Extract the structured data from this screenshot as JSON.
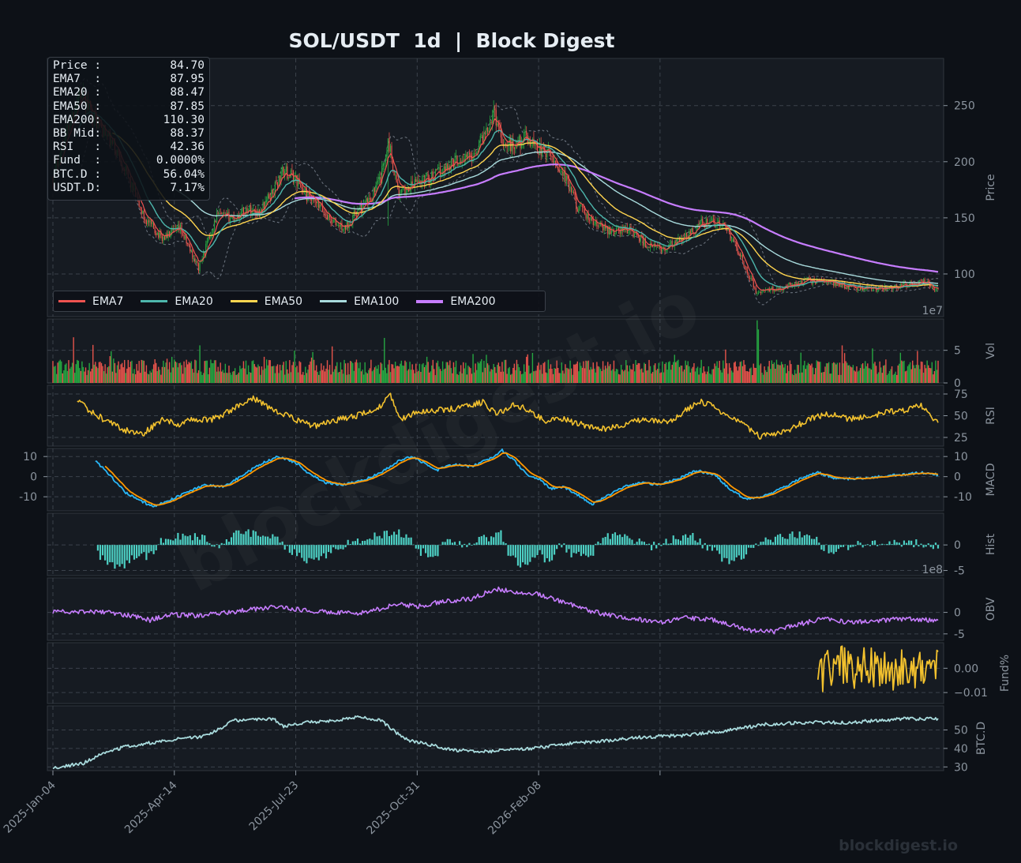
{
  "title": "SOL/USDT  1d  |  Block Digest",
  "watermark": "blockdigest.io",
  "footer_brand": "blockdigest.io",
  "info_box": [
    {
      "label": "Price :",
      "value": "84.70"
    },
    {
      "label": "EMA7  :",
      "value": "87.95"
    },
    {
      "label": "EMA20 :",
      "value": "88.47"
    },
    {
      "label": "EMA50 :",
      "value": "87.85"
    },
    {
      "label": "EMA200:",
      "value": "110.30"
    },
    {
      "label": "BB Mid:",
      "value": "88.37"
    },
    {
      "label": "RSI   :",
      "value": "42.36"
    },
    {
      "label": "Fund  :",
      "value": "0.0000%"
    },
    {
      "label": "BTC.D :",
      "value": "56.04%"
    },
    {
      "label": "USDT.D:",
      "value": "7.17%"
    }
  ],
  "legend": [
    {
      "name": "EMA7",
      "color": "#ef5350"
    },
    {
      "name": "EMA20",
      "color": "#4db6ac"
    },
    {
      "name": "EMA50",
      "color": "#ffd54f"
    },
    {
      "name": "EMA100",
      "color": "#a8dadc"
    },
    {
      "name": "EMA200",
      "color": "#c77dff"
    }
  ],
  "x_ticks": [
    "2025-Jan-04",
    "2025-Apr-14",
    "2025-Jul-23",
    "2025-Oct-31",
    "2026-Feb-08"
  ],
  "colors": {
    "background": "#0d1117",
    "panel": "#161b22",
    "up": "#26a641",
    "down": "#e5534b",
    "rsi": "#f2c12e",
    "macd": "#29b6f6",
    "signal": "#ff9800",
    "hist": "#4dd0c4",
    "obv": "#c77dff",
    "fund": "#f2c12e",
    "btcd": "#a8dadc"
  },
  "chart_data": [
    {
      "type": "candlestick",
      "panel": "price",
      "ylabel": "Price",
      "y_ticks": [
        100,
        150,
        200,
        250
      ],
      "ylim": [
        62,
        292
      ],
      "x_start": "2025-01-04",
      "x_end": "2026-05-09",
      "anchors": [
        [
          0,
          186
        ],
        [
          10,
          222
        ],
        [
          22,
          262
        ],
        [
          35,
          238
        ],
        [
          55,
          205
        ],
        [
          75,
          150
        ],
        [
          90,
          132
        ],
        [
          105,
          140
        ],
        [
          120,
          105
        ],
        [
          135,
          152
        ],
        [
          150,
          150
        ],
        [
          160,
          158
        ],
        [
          170,
          155
        ],
        [
          180,
          172
        ],
        [
          190,
          192
        ],
        [
          200,
          185
        ],
        [
          210,
          168
        ],
        [
          220,
          159
        ],
        [
          230,
          147
        ],
        [
          240,
          140
        ],
        [
          250,
          155
        ],
        [
          260,
          165
        ],
        [
          270,
          185
        ],
        [
          276,
          220
        ],
        [
          285,
          170
        ],
        [
          300,
          182
        ],
        [
          315,
          188
        ],
        [
          330,
          200
        ],
        [
          345,
          205
        ],
        [
          355,
          224
        ],
        [
          363,
          245
        ],
        [
          372,
          215
        ],
        [
          380,
          215
        ],
        [
          390,
          222
        ],
        [
          400,
          212
        ],
        [
          410,
          205
        ],
        [
          420,
          190
        ],
        [
          432,
          160
        ],
        [
          445,
          145
        ],
        [
          460,
          138
        ],
        [
          475,
          140
        ],
        [
          490,
          125
        ],
        [
          505,
          122
        ],
        [
          520,
          132
        ],
        [
          535,
          146
        ],
        [
          550,
          145
        ],
        [
          560,
          130
        ],
        [
          570,
          107
        ],
        [
          580,
          82
        ],
        [
          590,
          86
        ],
        [
          600,
          88
        ],
        [
          620,
          94
        ],
        [
          640,
          93
        ],
        [
          660,
          88
        ],
        [
          680,
          86
        ],
        [
          700,
          90
        ],
        [
          720,
          93
        ],
        [
          729,
          85
        ]
      ],
      "series": [
        {
          "name": "EMA7",
          "color": "#ef5350"
        },
        {
          "name": "EMA20",
          "color": "#4db6ac"
        },
        {
          "name": "EMA50",
          "color": "#ffd54f"
        },
        {
          "name": "EMA100",
          "color": "#a8dadc"
        },
        {
          "name": "EMA200",
          "color": "#c77dff"
        }
      ],
      "bollinger": "BB Mid ± 2σ (dashed)"
    },
    {
      "type": "bar",
      "panel": "volume",
      "ylabel": "Vol",
      "y_ticks": [
        0,
        5
      ],
      "ylim": [
        0,
        9.8
      ],
      "offset_text": "1e7"
    },
    {
      "type": "line",
      "panel": "rsi",
      "ylabel": "RSI",
      "y_ticks": [
        25,
        50,
        75
      ],
      "ylim": [
        15,
        85
      ],
      "anchors": [
        [
          20,
          70
        ],
        [
          30,
          56
        ],
        [
          45,
          43
        ],
        [
          60,
          33
        ],
        [
          75,
          30
        ],
        [
          90,
          45
        ],
        [
          105,
          40
        ],
        [
          115,
          46
        ],
        [
          130,
          45
        ],
        [
          145,
          55
        ],
        [
          155,
          64
        ],
        [
          165,
          70
        ],
        [
          180,
          58
        ],
        [
          190,
          52
        ],
        [
          205,
          42
        ],
        [
          215,
          38
        ],
        [
          230,
          44
        ],
        [
          245,
          48
        ],
        [
          260,
          54
        ],
        [
          270,
          62
        ],
        [
          278,
          74
        ],
        [
          286,
          45
        ],
        [
          300,
          55
        ],
        [
          315,
          56
        ],
        [
          330,
          58
        ],
        [
          345,
          62
        ],
        [
          355,
          66
        ],
        [
          365,
          51
        ],
        [
          380,
          63
        ],
        [
          392,
          56
        ],
        [
          405,
          44
        ],
        [
          420,
          46
        ],
        [
          435,
          40
        ],
        [
          450,
          34
        ],
        [
          465,
          38
        ],
        [
          480,
          45
        ],
        [
          495,
          44
        ],
        [
          510,
          44
        ],
        [
          520,
          55
        ],
        [
          533,
          66
        ],
        [
          545,
          60
        ],
        [
          555,
          50
        ],
        [
          570,
          38
        ],
        [
          582,
          26
        ],
        [
          595,
          30
        ],
        [
          610,
          36
        ],
        [
          625,
          48
        ],
        [
          640,
          52
        ],
        [
          655,
          46
        ],
        [
          670,
          48
        ],
        [
          685,
          54
        ],
        [
          700,
          56
        ],
        [
          715,
          62
        ],
        [
          725,
          46
        ],
        [
          729,
          42
        ]
      ]
    },
    {
      "type": "line",
      "panel": "macd",
      "ylabel": "MACD",
      "y_ticks": [
        -10,
        0,
        10
      ],
      "ylim": [
        -17,
        14
      ],
      "series": [
        {
          "name": "MACD",
          "color": "#29b6f6"
        },
        {
          "name": "Signal",
          "color": "#ff9800"
        }
      ],
      "anchors": [
        [
          35,
          8
        ],
        [
          48,
          0
        ],
        [
          60,
          -8
        ],
        [
          72,
          -12
        ],
        [
          83,
          -15
        ],
        [
          95,
          -12
        ],
        [
          110,
          -8
        ],
        [
          125,
          -4
        ],
        [
          140,
          -5
        ],
        [
          155,
          0
        ],
        [
          170,
          6
        ],
        [
          185,
          10
        ],
        [
          200,
          7
        ],
        [
          212,
          1
        ],
        [
          225,
          -3
        ],
        [
          240,
          -4
        ],
        [
          255,
          -2
        ],
        [
          270,
          2
        ],
        [
          285,
          8
        ],
        [
          296,
          10
        ],
        [
          305,
          7
        ],
        [
          315,
          3
        ],
        [
          330,
          6
        ],
        [
          345,
          5
        ],
        [
          360,
          9
        ],
        [
          370,
          13
        ],
        [
          380,
          8
        ],
        [
          390,
          1
        ],
        [
          400,
          -1
        ],
        [
          410,
          -6
        ],
        [
          420,
          -5
        ],
        [
          432,
          -9
        ],
        [
          444,
          -14
        ],
        [
          455,
          -10
        ],
        [
          470,
          -5
        ],
        [
          485,
          -3
        ],
        [
          500,
          -4
        ],
        [
          515,
          -1
        ],
        [
          530,
          3
        ],
        [
          545,
          1
        ],
        [
          557,
          -6
        ],
        [
          570,
          -11
        ],
        [
          585,
          -10
        ],
        [
          600,
          -6
        ],
        [
          615,
          -1
        ],
        [
          630,
          2
        ],
        [
          645,
          -1
        ],
        [
          660,
          -1
        ],
        [
          680,
          0
        ],
        [
          700,
          1
        ],
        [
          715,
          2
        ],
        [
          729,
          1
        ]
      ]
    },
    {
      "type": "bar",
      "panel": "hist",
      "ylabel": "Hist",
      "y_ticks": [
        -5,
        0
      ],
      "ylim": [
        -6,
        6.2
      ]
    },
    {
      "type": "line",
      "panel": "obv",
      "ylabel": "OBV",
      "y_ticks": [
        -5,
        0
      ],
      "ylim": [
        -6.5,
        8
      ],
      "offset_text": "1e8",
      "anchors": [
        [
          0,
          0
        ],
        [
          20,
          0.2
        ],
        [
          45,
          0
        ],
        [
          70,
          -1
        ],
        [
          80,
          -1.8
        ],
        [
          95,
          -0.5
        ],
        [
          120,
          -0.8
        ],
        [
          145,
          0
        ],
        [
          160,
          0.6
        ],
        [
          180,
          1.2
        ],
        [
          200,
          0.7
        ],
        [
          230,
          0
        ],
        [
          250,
          -0.3
        ],
        [
          265,
          0.5
        ],
        [
          285,
          2
        ],
        [
          300,
          1.3
        ],
        [
          320,
          2.5
        ],
        [
          345,
          3.2
        ],
        [
          365,
          5.5
        ],
        [
          380,
          4.8
        ],
        [
          400,
          4.2
        ],
        [
          425,
          2
        ],
        [
          440,
          0.5
        ],
        [
          460,
          -0.8
        ],
        [
          480,
          -1.5
        ],
        [
          500,
          -2.3
        ],
        [
          520,
          -1.2
        ],
        [
          545,
          -1.8
        ],
        [
          560,
          -3
        ],
        [
          575,
          -4.2
        ],
        [
          595,
          -4.5
        ],
        [
          610,
          -3
        ],
        [
          635,
          -1.5
        ],
        [
          655,
          -2.3
        ],
        [
          675,
          -2
        ],
        [
          700,
          -1.5
        ],
        [
          720,
          -1.8
        ],
        [
          729,
          -2.2
        ]
      ]
    },
    {
      "type": "line",
      "panel": "funding",
      "ylabel": "Fund%",
      "y_ticks": [
        -0.01,
        0.0
      ],
      "ylim": [
        -0.0145,
        0.0105
      ],
      "x_start_index": 630,
      "anchors": [
        [
          630,
          -0.009
        ],
        [
          640,
          0.0
        ],
        [
          650,
          0.004
        ],
        [
          660,
          -0.003
        ],
        [
          670,
          0.005
        ],
        [
          680,
          -0.002
        ],
        [
          690,
          -0.006
        ],
        [
          700,
          0.001
        ],
        [
          710,
          -0.004
        ],
        [
          720,
          0.006
        ],
        [
          729,
          0.0
        ]
      ]
    },
    {
      "type": "line",
      "panel": "btc_dominance",
      "ylabel": "BTC.D",
      "y_ticks": [
        30,
        40,
        50
      ],
      "ylim": [
        28,
        63
      ],
      "anchors": [
        [
          0,
          29.5
        ],
        [
          25,
          32
        ],
        [
          40,
          37
        ],
        [
          60,
          41
        ],
        [
          80,
          43
        ],
        [
          100,
          45
        ],
        [
          120,
          46
        ],
        [
          140,
          51
        ],
        [
          145,
          55
        ],
        [
          170,
          55.5
        ],
        [
          182,
          56
        ],
        [
          190,
          52
        ],
        [
          210,
          54
        ],
        [
          230,
          55
        ],
        [
          250,
          57
        ],
        [
          270,
          55
        ],
        [
          290,
          45
        ],
        [
          300,
          43.5
        ],
        [
          330,
          39
        ],
        [
          360,
          38.5
        ],
        [
          395,
          40
        ],
        [
          430,
          43
        ],
        [
          455,
          44
        ],
        [
          480,
          46
        ],
        [
          520,
          47
        ],
        [
          560,
          50
        ],
        [
          585,
          53
        ],
        [
          620,
          54
        ],
        [
          655,
          54
        ],
        [
          700,
          56
        ],
        [
          729,
          56
        ]
      ]
    }
  ]
}
